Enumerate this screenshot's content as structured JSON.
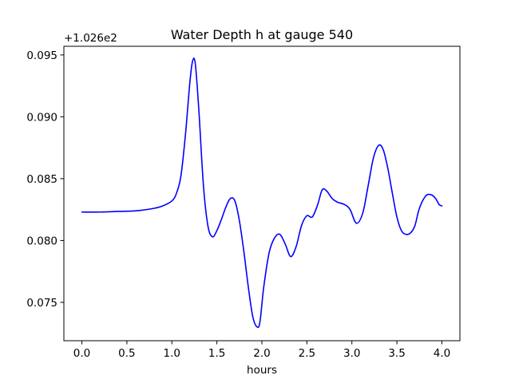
{
  "chart_data": {
    "type": "line",
    "title": "Water Depth h at gauge 540",
    "xlabel": "hours",
    "ylabel": "",
    "offset_text": "+1.026e2",
    "xlim": [
      -0.2,
      4.2
    ],
    "ylim": [
      0.0719,
      0.0957
    ],
    "xticks": [
      0.0,
      0.5,
      1.0,
      1.5,
      2.0,
      2.5,
      3.0,
      3.5,
      4.0
    ],
    "xtick_labels": [
      "0.0",
      "0.5",
      "1.0",
      "1.5",
      "2.0",
      "2.5",
      "3.0",
      "3.5",
      "4.0"
    ],
    "yticks": [
      0.075,
      0.08,
      0.085,
      0.09,
      0.095
    ],
    "ytick_labels": [
      "0.075",
      "0.080",
      "0.085",
      "0.090",
      "0.095"
    ],
    "grid": false,
    "series": [
      {
        "color": "#0000ff",
        "x": [
          0.0,
          0.2,
          0.4,
          0.6,
          0.8,
          0.9,
          1.0,
          1.05,
          1.1,
          1.15,
          1.2,
          1.23,
          1.26,
          1.3,
          1.35,
          1.4,
          1.45,
          1.5,
          1.55,
          1.6,
          1.65,
          1.7,
          1.75,
          1.8,
          1.85,
          1.9,
          1.95,
          1.98,
          2.02,
          2.08,
          2.14,
          2.2,
          2.26,
          2.32,
          2.38,
          2.44,
          2.5,
          2.56,
          2.62,
          2.67,
          2.72,
          2.78,
          2.84,
          2.92,
          2.98,
          3.05,
          3.12,
          3.18,
          3.24,
          3.3,
          3.35,
          3.4,
          3.45,
          3.5,
          3.55,
          3.6,
          3.65,
          3.7,
          3.75,
          3.82,
          3.88,
          3.93,
          3.97,
          4.0
        ],
        "y": [
          0.0823,
          0.0823,
          0.08235,
          0.0824,
          0.0826,
          0.0828,
          0.0832,
          0.0838,
          0.0852,
          0.0885,
          0.0928,
          0.0945,
          0.0943,
          0.0905,
          0.0845,
          0.0812,
          0.0803,
          0.0808,
          0.0817,
          0.0827,
          0.0834,
          0.0832,
          0.0816,
          0.0791,
          0.0762,
          0.0738,
          0.073,
          0.0735,
          0.0762,
          0.079,
          0.0802,
          0.0805,
          0.0797,
          0.0787,
          0.0795,
          0.0812,
          0.082,
          0.0819,
          0.0829,
          0.0841,
          0.084,
          0.0834,
          0.0831,
          0.0829,
          0.0825,
          0.0814,
          0.0822,
          0.0844,
          0.0867,
          0.0877,
          0.0873,
          0.0858,
          0.0838,
          0.0819,
          0.0808,
          0.0805,
          0.0806,
          0.0812,
          0.0826,
          0.0836,
          0.0837,
          0.0834,
          0.0829,
          0.0828
        ]
      }
    ]
  }
}
